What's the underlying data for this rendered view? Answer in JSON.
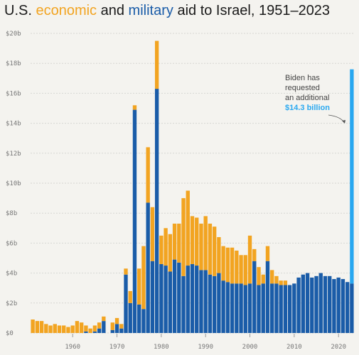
{
  "header": {
    "title_prefix": "U.S. ",
    "title_econ": "economic",
    "title_mid": " and ",
    "title_mil": "military",
    "title_suffix": " aid to Israel, 1951–2023"
  },
  "annotation": {
    "line1": "Biden has",
    "line2": "requested",
    "line3": "an additional",
    "line4": "$14.3 billion"
  },
  "colors": {
    "economic": "#f2a421",
    "military": "#1a5ca8",
    "requested": "#29a8f0",
    "grid": "#d6d6d2"
  },
  "chart_data": {
    "type": "bar",
    "stacked": true,
    "title": "U.S. economic and military aid to Israel, 1951–2023",
    "xlabel": "",
    "ylabel": "",
    "ylim": [
      0,
      20
    ],
    "yticks": [
      0,
      2,
      4,
      6,
      8,
      10,
      12,
      14,
      16,
      18,
      20
    ],
    "ytick_labels": [
      "$0",
      "$2b",
      "$4b",
      "$6b",
      "$8b",
      "$10b",
      "$12b",
      "$14b",
      "$16b",
      "$18b",
      "$20b"
    ],
    "xticks": [
      1960,
      1970,
      1980,
      1990,
      2000,
      2010,
      2020
    ],
    "xtick_labels": [
      "1960",
      "1970",
      "1980",
      "1990",
      "2000",
      "2010",
      "2020"
    ],
    "grid": true,
    "years": [
      1951,
      1952,
      1953,
      1954,
      1955,
      1956,
      1957,
      1958,
      1959,
      1960,
      1961,
      1962,
      1963,
      1964,
      1965,
      1966,
      1967,
      1968,
      1969,
      1970,
      1971,
      1972,
      1973,
      1974,
      1975,
      1976,
      1977,
      1978,
      1979,
      1980,
      1981,
      1982,
      1983,
      1984,
      1985,
      1986,
      1987,
      1988,
      1989,
      1990,
      1991,
      1992,
      1993,
      1994,
      1995,
      1996,
      1997,
      1998,
      1999,
      2000,
      2001,
      2002,
      2003,
      2004,
      2005,
      2006,
      2007,
      2008,
      2009,
      2010,
      2011,
      2012,
      2013,
      2014,
      2015,
      2016,
      2017,
      2018,
      2019,
      2020,
      2021,
      2022,
      2023
    ],
    "series": [
      {
        "name": "military",
        "values": [
          0,
          0,
          0,
          0,
          0,
          0,
          0,
          0,
          0,
          0,
          0,
          0,
          0.1,
          0,
          0.1,
          0.3,
          0.8,
          0,
          0.2,
          0.6,
          0.3,
          3.9,
          2.0,
          14.9,
          1.9,
          1.6,
          8.7,
          4.8,
          16.3,
          4.6,
          4.5,
          4.1,
          4.9,
          4.7,
          3.8,
          4.5,
          4.6,
          4.5,
          4.2,
          4.2,
          3.9,
          3.8,
          4.0,
          3.5,
          3.4,
          3.3,
          3.3,
          3.3,
          3.2,
          3.3,
          4.8,
          3.2,
          3.3,
          4.8,
          3.3,
          3.3,
          3.2,
          3.2,
          3.2,
          3.3,
          3.7,
          3.9,
          4.0,
          3.7,
          3.8,
          4.0,
          3.8,
          3.8,
          3.6,
          3.7,
          3.6,
          3.4,
          3.3
        ]
      },
      {
        "name": "economic",
        "values": [
          0.9,
          0.8,
          0.8,
          0.6,
          0.5,
          0.6,
          0.5,
          0.5,
          0.4,
          0.5,
          0.8,
          0.7,
          0.4,
          0.3,
          0.4,
          0.4,
          0.3,
          0,
          0.5,
          0.4,
          0.3,
          0.4,
          0.8,
          0.3,
          2.4,
          4.2,
          3.7,
          3.6,
          3.2,
          1.9,
          2.5,
          2.5,
          2.4,
          2.6,
          5.2,
          5.0,
          3.2,
          3.2,
          3.1,
          3.6,
          3.4,
          3.3,
          2.4,
          2.3,
          2.3,
          2.4,
          2.2,
          1.9,
          2.0,
          3.2,
          0.8,
          1.2,
          0.6,
          1.0,
          0.9,
          0.5,
          0.3,
          0.3,
          0,
          0,
          0,
          0,
          0,
          0,
          0,
          0,
          0,
          0,
          0,
          0,
          0,
          0,
          0
        ]
      },
      {
        "name": "requested",
        "values": [
          0,
          0,
          0,
          0,
          0,
          0,
          0,
          0,
          0,
          0,
          0,
          0,
          0,
          0,
          0,
          0,
          0,
          0,
          0,
          0,
          0,
          0,
          0,
          0,
          0,
          0,
          0,
          0,
          0,
          0,
          0,
          0,
          0,
          0,
          0,
          0,
          0,
          0,
          0,
          0,
          0,
          0,
          0,
          0,
          0,
          0,
          0,
          0,
          0,
          0,
          0,
          0,
          0,
          0,
          0,
          0,
          0,
          0,
          0,
          0,
          0,
          0,
          0,
          0,
          0,
          0,
          0,
          0,
          0,
          0,
          0,
          0,
          14.3
        ]
      }
    ]
  }
}
